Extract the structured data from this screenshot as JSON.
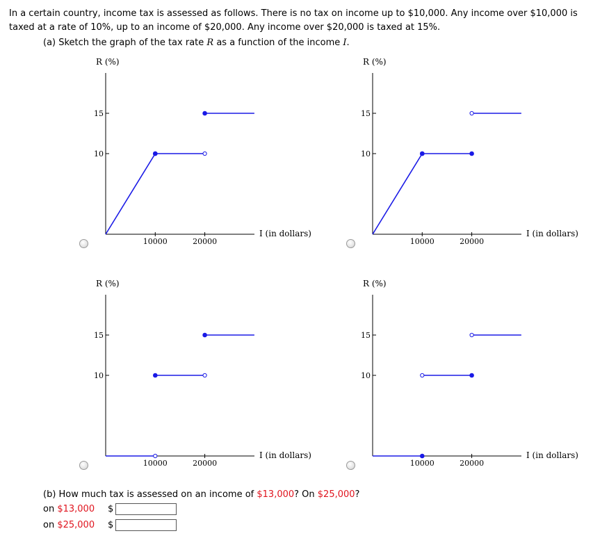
{
  "question": {
    "intro": "In a certain country, income tax is assessed as follows. There is no tax on income up to $10,000. Any income over $10,000 is taxed at a rate of 10%, up to an income of $20,000. Any income over $20,000 is taxed at 15%.",
    "part_a": {
      "prefix": "(a) Sketch the graph of the tax rate ",
      "var_r": "R",
      "middle": " as a function of the income ",
      "var_i": "I",
      "suffix": "."
    },
    "part_b": {
      "prefix": "(b) How much tax is assessed on an income of ",
      "amount1": "$13,000",
      "middle": "? On ",
      "amount2": "$25,000",
      "suffix": "?"
    },
    "answers": [
      {
        "prefix": "on ",
        "amount": "$13,000",
        "currency": "$",
        "value": ""
      },
      {
        "prefix": "on ",
        "amount": "$25,000",
        "currency": "$",
        "value": ""
      }
    ]
  },
  "graph_labels": {
    "ylabel": "R (%)",
    "xlabel": "I (in dollars)",
    "xticks": [
      "10000",
      "20000"
    ],
    "yticks": [
      "10",
      "15"
    ]
  },
  "chart_data": [
    {
      "type": "line",
      "ylabel": "R (%)",
      "xlabel": "I (in dollars)",
      "segments": [
        {
          "from": [
            0,
            0
          ],
          "to": [
            10000,
            10
          ],
          "end_dots": [
            "none",
            "filled"
          ]
        },
        {
          "from": [
            10000,
            10
          ],
          "to": [
            20000,
            10
          ],
          "end_dots": [
            "filled",
            "open"
          ]
        },
        {
          "from": [
            20000,
            15
          ],
          "to": [
            30000,
            15
          ],
          "end_dots": [
            "filled",
            "none"
          ]
        }
      ]
    },
    {
      "type": "line",
      "ylabel": "R (%)",
      "xlabel": "I (in dollars)",
      "segments": [
        {
          "from": [
            0,
            0
          ],
          "to": [
            10000,
            10
          ],
          "end_dots": [
            "none",
            "filled"
          ]
        },
        {
          "from": [
            10000,
            10
          ],
          "to": [
            20000,
            10
          ],
          "end_dots": [
            "filled",
            "filled"
          ]
        },
        {
          "from": [
            20000,
            15
          ],
          "to": [
            30000,
            15
          ],
          "end_dots": [
            "open",
            "none"
          ]
        }
      ]
    },
    {
      "type": "line",
      "ylabel": "R (%)",
      "xlabel": "I (in dollars)",
      "segments": [
        {
          "from": [
            0,
            0
          ],
          "to": [
            10000,
            0
          ],
          "end_dots": [
            "none",
            "open"
          ]
        },
        {
          "from": [
            10000,
            10
          ],
          "to": [
            20000,
            10
          ],
          "end_dots": [
            "filled",
            "open"
          ]
        },
        {
          "from": [
            20000,
            15
          ],
          "to": [
            30000,
            15
          ],
          "end_dots": [
            "filled",
            "none"
          ]
        }
      ]
    },
    {
      "type": "line",
      "ylabel": "R (%)",
      "xlabel": "I (in dollars)",
      "segments": [
        {
          "from": [
            0,
            0
          ],
          "to": [
            10000,
            0
          ],
          "end_dots": [
            "none",
            "filled"
          ]
        },
        {
          "from": [
            10000,
            10
          ],
          "to": [
            20000,
            10
          ],
          "end_dots": [
            "open",
            "filled"
          ]
        },
        {
          "from": [
            20000,
            15
          ],
          "to": [
            30000,
            15
          ],
          "end_dots": [
            "open",
            "none"
          ]
        }
      ]
    }
  ],
  "colors": {
    "curve": "#1a1ae6",
    "highlight": "#e0141e",
    "axis": "#000000"
  }
}
